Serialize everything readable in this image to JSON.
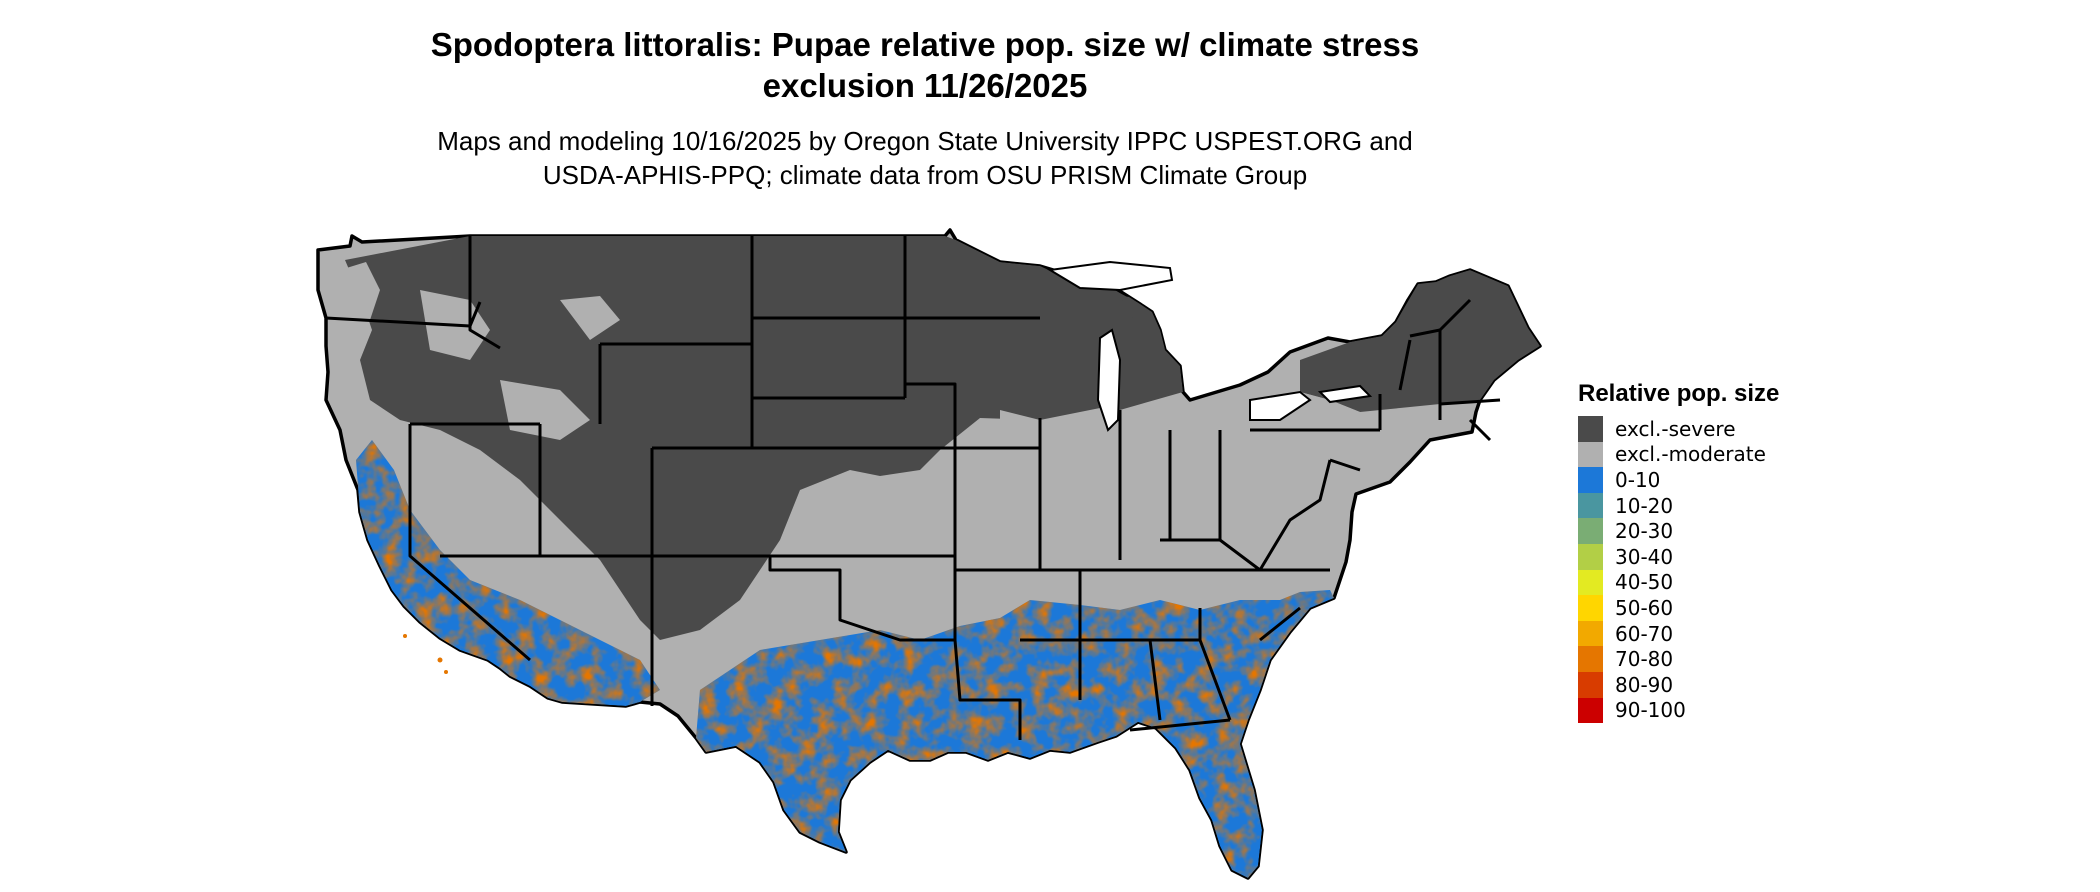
{
  "title_lines": [
    "Spodoptera littoralis: Pupae relative pop. size w/ climate stress",
    "exclusion 11/26/2025"
  ],
  "subtitle_lines": [
    "Maps and modeling 10/16/2025 by Oregon State University IPPC USPEST.ORG and",
    "USDA-APHIS-PPQ; climate data from OSU PRISM Climate Group"
  ],
  "legend": {
    "title": "Relative pop. size",
    "items": [
      {
        "label": "excl.-severe",
        "color": "#4a4a4a"
      },
      {
        "label": "excl.-moderate",
        "color": "#b0b0b0"
      },
      {
        "label": "0-10",
        "color": "#1c78d8"
      },
      {
        "label": "10-20",
        "color": "#4a96a0"
      },
      {
        "label": "20-30",
        "color": "#7aad74"
      },
      {
        "label": "30-40",
        "color": "#b2cf46"
      },
      {
        "label": "40-50",
        "color": "#e3ea22"
      },
      {
        "label": "50-60",
        "color": "#ffd600"
      },
      {
        "label": "60-70",
        "color": "#f2a900"
      },
      {
        "label": "70-80",
        "color": "#e57600"
      },
      {
        "label": "80-90",
        "color": "#d83c00"
      },
      {
        "label": "90-100",
        "color": "#cc0000"
      }
    ]
  }
}
